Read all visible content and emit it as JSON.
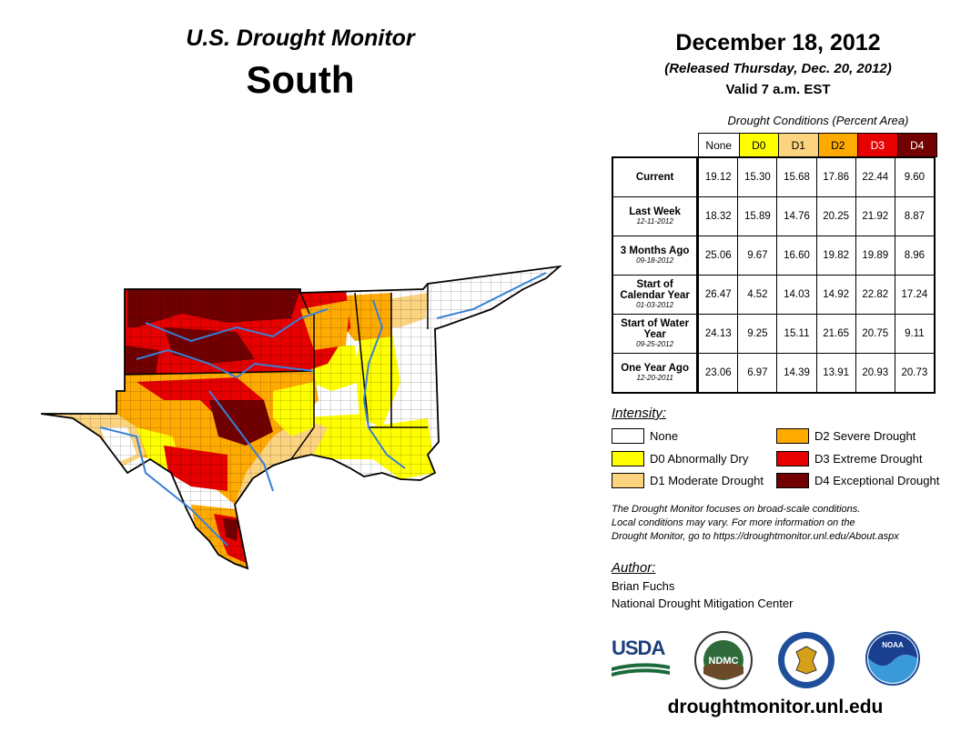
{
  "header": {
    "title": "U.S. Drought Monitor",
    "region": "South",
    "date": "December 18, 2012",
    "released": "(Released Thursday, Dec. 20, 2012)",
    "valid": "Valid 7 a.m. EST"
  },
  "table": {
    "caption": "Drought Conditions (Percent Area)",
    "columns": [
      {
        "label": "None",
        "color": "#ffffff"
      },
      {
        "label": "D0",
        "color": "#ffff00"
      },
      {
        "label": "D1",
        "color": "#fcd37f"
      },
      {
        "label": "D2",
        "color": "#ffaa00"
      },
      {
        "label": "D3",
        "color": "#e60000"
      },
      {
        "label": "D4",
        "color": "#730000"
      }
    ],
    "rows": [
      {
        "label": "Current",
        "date": "",
        "values": [
          "19.12",
          "15.30",
          "15.68",
          "17.86",
          "22.44",
          "9.60"
        ]
      },
      {
        "label": "Last Week",
        "date": "12-11-2012",
        "values": [
          "18.32",
          "15.89",
          "14.76",
          "20.25",
          "21.92",
          "8.87"
        ]
      },
      {
        "label": "3 Months Ago",
        "date": "09-18-2012",
        "values": [
          "25.06",
          "9.67",
          "16.60",
          "19.82",
          "19.89",
          "8.96"
        ]
      },
      {
        "label": "Start of Calendar Year",
        "date": "01-03-2012",
        "values": [
          "26.47",
          "4.52",
          "14.03",
          "14.92",
          "22.82",
          "17.24"
        ]
      },
      {
        "label": "Start of Water Year",
        "date": "09-25-2012",
        "values": [
          "24.13",
          "9.25",
          "15.11",
          "21.65",
          "20.75",
          "9.11"
        ]
      },
      {
        "label": "One Year Ago",
        "date": "12-20-2011",
        "values": [
          "23.06",
          "6.97",
          "14.39",
          "13.91",
          "20.93",
          "20.73"
        ]
      }
    ]
  },
  "legend": {
    "title": "Intensity:",
    "items": [
      {
        "label": "None",
        "color": "#ffffff"
      },
      {
        "label": "D0 Abnormally Dry",
        "color": "#ffff00"
      },
      {
        "label": "D1 Moderate Drought",
        "color": "#fcd37f"
      },
      {
        "label": "D2 Severe Drought",
        "color": "#ffaa00"
      },
      {
        "label": "D3 Extreme Drought",
        "color": "#e60000"
      },
      {
        "label": "D4 Exceptional Drought",
        "color": "#730000"
      }
    ]
  },
  "note": {
    "line1": "The Drought Monitor focuses on broad-scale conditions.",
    "line2": "Local conditions may vary. For more information on the",
    "line3": "Drought Monitor, go to https://droughtmonitor.unl.edu/About.aspx"
  },
  "author": {
    "label": "Author:",
    "name": "Brian Fuchs",
    "org": "National Drought Mitigation Center"
  },
  "logos": {
    "usda": "USDA",
    "ndmc": "NDMC",
    "noaa": "NOAA"
  },
  "website": "droughtmonitor.unl.edu"
}
